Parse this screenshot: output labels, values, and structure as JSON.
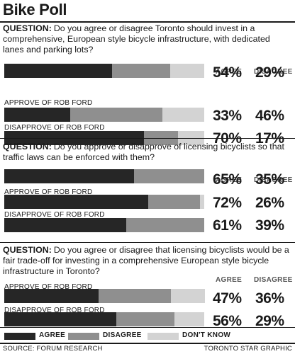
{
  "title": "Bike Poll",
  "colors": {
    "agree": "#262626",
    "disagree": "#8f8f8f",
    "dontknow": "#d3d3d3"
  },
  "legend": {
    "agree": "AGREE",
    "disagree": "DISAGREE",
    "dontknow": "DON'T KNOW"
  },
  "source": "SOURCE: FORUM RESEARCH",
  "credit": "TORONTO STAR GRAPHIC",
  "chart_data": [
    {
      "type": "bar",
      "orientation": "horizontal",
      "stacked": true,
      "question_label": "QUESTION:",
      "question": "Do you agree or disagree Toronto should invest in a comprehensive, European style bicycle infrastructure, with dedicated lanes and parking lots?",
      "column_headers": [
        "AGREE",
        "DISAGREE"
      ],
      "categories": [
        "",
        "APPROVE OF ROB FORD",
        "DISAPPROVE OF ROB FORD"
      ],
      "series": [
        {
          "name": "AGREE",
          "values": [
            54,
            33,
            70
          ]
        },
        {
          "name": "DISAGREE",
          "values": [
            29,
            46,
            17
          ]
        },
        {
          "name": "DON'T KNOW",
          "values": [
            17,
            21,
            13
          ]
        }
      ],
      "labels": {
        "agree": [
          "54%",
          "33%",
          "70%"
        ],
        "disagree": [
          "29%",
          "46%",
          "17%"
        ]
      }
    },
    {
      "type": "bar",
      "orientation": "horizontal",
      "stacked": true,
      "question_label": "QUESTION:",
      "question": "Do you approve or disapprove of licensing bicyclists so that traffic laws can be enforced with them?",
      "column_headers": [
        "AGREE",
        "DISAGREE"
      ],
      "categories": [
        "",
        "APPROVE OF ROB FORD",
        "DISAPPROVE OF ROB FORD"
      ],
      "series": [
        {
          "name": "AGREE",
          "values": [
            65,
            72,
            61
          ]
        },
        {
          "name": "DISAGREE",
          "values": [
            35,
            26,
            39
          ]
        },
        {
          "name": "DON'T KNOW",
          "values": [
            0,
            2,
            0
          ]
        }
      ],
      "labels": {
        "agree": [
          "65%",
          "72%",
          "61%"
        ],
        "disagree": [
          "35%",
          "26%",
          "39%"
        ]
      }
    },
    {
      "type": "bar",
      "orientation": "horizontal",
      "stacked": true,
      "question_label": "QUESTION:",
      "question": "Do you agree or disagree that licensing bicyclists would be a fair trade-off for investing in a comprehensive European style bicycle infrastructure in Toronto?",
      "column_headers": [
        "AGREE",
        "DISAGREE"
      ],
      "categories": [
        "APPROVE OF ROB FORD",
        "DISAPPROVE OF ROB FORD"
      ],
      "series": [
        {
          "name": "AGREE",
          "values": [
            47,
            56
          ]
        },
        {
          "name": "DISAGREE",
          "values": [
            36,
            29
          ]
        },
        {
          "name": "DON'T KNOW",
          "values": [
            17,
            15
          ]
        }
      ],
      "labels": {
        "agree": [
          "47%",
          "56%"
        ],
        "disagree": [
          "36%",
          "29%"
        ]
      }
    }
  ]
}
